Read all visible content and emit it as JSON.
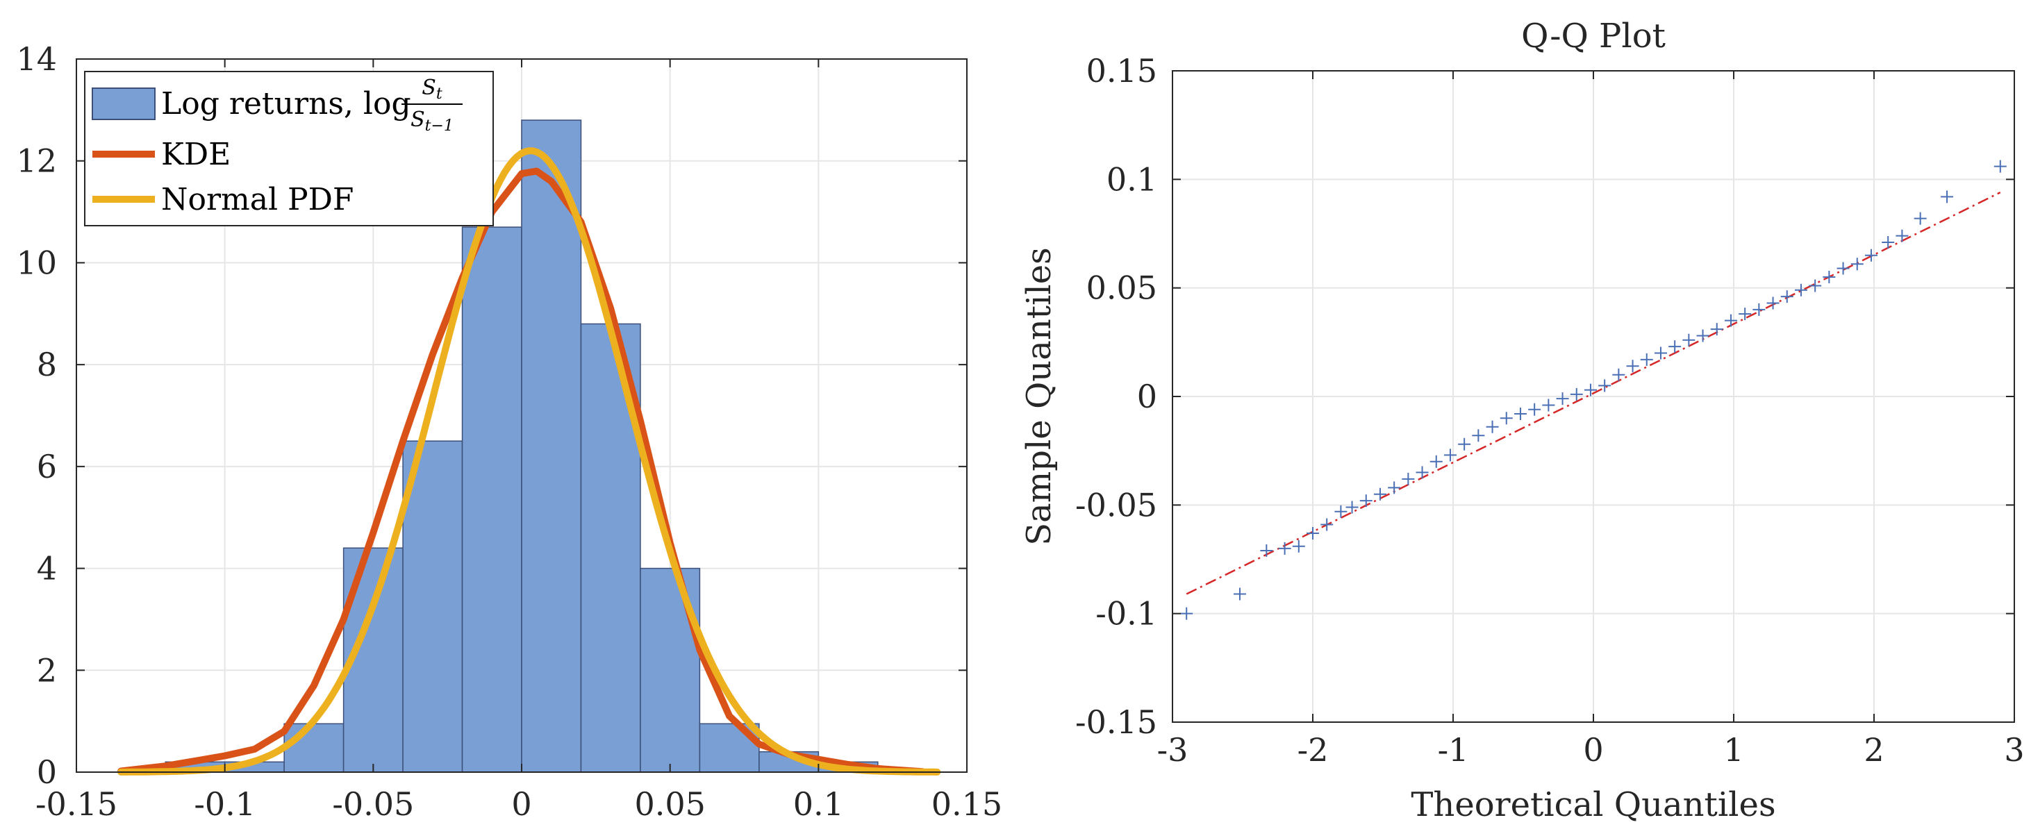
{
  "chart_data": [
    {
      "type": "bar",
      "title": "",
      "xlabel": "",
      "ylabel": "",
      "xlim": [
        -0.15,
        0.15
      ],
      "ylim": [
        0,
        14
      ],
      "xticks": [
        -0.15,
        -0.1,
        -0.05,
        0,
        0.05,
        0.1,
        0.15
      ],
      "xtick_labels": [
        "-0.15",
        "-0.1",
        "-0.05",
        "0",
        "0.05",
        "0.1",
        "0.15"
      ],
      "yticks": [
        0,
        2,
        4,
        6,
        8,
        10,
        12,
        14
      ],
      "ytick_labels": [
        "0",
        "2",
        "4",
        "6",
        "8",
        "10",
        "12",
        "14"
      ],
      "grid": true,
      "legend_position": "top-left",
      "histogram": {
        "name": "Log returns, log",
        "name_fraction": {
          "numerator": "S",
          "numerator_sub": "t",
          "denominator": "S",
          "denominator_sub": "t−1"
        },
        "color": "#7a9fd5",
        "edge_color": "#3b4f78",
        "bin_edges": [
          -0.12,
          -0.1,
          -0.08,
          -0.06,
          -0.04,
          -0.02,
          0.0,
          0.02,
          0.04,
          0.06,
          0.08,
          0.1,
          0.12
        ],
        "values": [
          0.2,
          0.2,
          0.95,
          4.4,
          6.5,
          10.7,
          12.8,
          8.8,
          4.0,
          0.95,
          0.4,
          0.2
        ]
      },
      "series": [
        {
          "name": "KDE",
          "color": "#d95319",
          "x": [
            -0.135,
            -0.12,
            -0.11,
            -0.1,
            -0.09,
            -0.08,
            -0.07,
            -0.06,
            -0.05,
            -0.04,
            -0.03,
            -0.02,
            -0.01,
            0.0,
            0.005,
            0.01,
            0.02,
            0.03,
            0.04,
            0.05,
            0.06,
            0.07,
            0.08,
            0.09,
            0.1,
            0.11,
            0.12,
            0.135
          ],
          "y": [
            0.02,
            0.12,
            0.22,
            0.32,
            0.45,
            0.8,
            1.7,
            3.0,
            4.7,
            6.5,
            8.2,
            9.7,
            11.0,
            11.75,
            11.8,
            11.6,
            10.8,
            9.1,
            6.9,
            4.5,
            2.4,
            1.1,
            0.55,
            0.35,
            0.25,
            0.15,
            0.07,
            0.01
          ]
        },
        {
          "name": "Normal PDF",
          "color": "#edb120",
          "mean": 0.003,
          "sd": 0.0327,
          "x_range": [
            -0.135,
            0.14
          ]
        }
      ]
    },
    {
      "type": "scatter",
      "title": "Q-Q Plot",
      "xlabel": "Theoretical Quantiles",
      "ylabel": "Sample Quantiles",
      "xlim": [
        -3,
        3
      ],
      "ylim": [
        -0.15,
        0.15
      ],
      "xticks": [
        -3,
        -2,
        -1,
        0,
        1,
        2,
        3
      ],
      "xtick_labels": [
        "-3",
        "-2",
        "-1",
        "0",
        "1",
        "2",
        "3"
      ],
      "yticks": [
        -0.15,
        -0.1,
        -0.05,
        0,
        0.05,
        0.1,
        0.15
      ],
      "ytick_labels": [
        "-0.15",
        "-0.1",
        "-0.05",
        "0",
        "0.05",
        "0.1",
        "0.15"
      ],
      "grid": true,
      "marker_color": "#4a6fb5",
      "reference_line": {
        "color": "#d62728",
        "style": "dash-dot",
        "x": [
          -2.9,
          2.9
        ],
        "y": [
          -0.091,
          0.094
        ]
      },
      "points": {
        "x": [
          -2.9,
          -2.52,
          -2.33,
          -2.2,
          -2.1,
          -2.0,
          -1.9,
          -1.8,
          -1.72,
          -1.62,
          -1.52,
          -1.42,
          -1.32,
          -1.22,
          -1.12,
          -1.02,
          -0.92,
          -0.82,
          -0.72,
          -0.62,
          -0.52,
          -0.42,
          -0.32,
          -0.22,
          -0.12,
          -0.02,
          0.08,
          0.18,
          0.28,
          0.38,
          0.48,
          0.58,
          0.68,
          0.78,
          0.88,
          0.98,
          1.08,
          1.18,
          1.28,
          1.38,
          1.48,
          1.58,
          1.68,
          1.78,
          1.88,
          1.98,
          2.1,
          2.2,
          2.33,
          2.52,
          2.9
        ],
        "y": [
          -0.1,
          -0.091,
          -0.071,
          -0.07,
          -0.069,
          -0.063,
          -0.059,
          -0.053,
          -0.051,
          -0.048,
          -0.045,
          -0.042,
          -0.038,
          -0.035,
          -0.03,
          -0.027,
          -0.022,
          -0.018,
          -0.014,
          -0.01,
          -0.008,
          -0.006,
          -0.004,
          -0.001,
          0.001,
          0.003,
          0.005,
          0.01,
          0.014,
          0.017,
          0.02,
          0.023,
          0.026,
          0.028,
          0.031,
          0.035,
          0.038,
          0.04,
          0.043,
          0.046,
          0.049,
          0.051,
          0.055,
          0.059,
          0.061,
          0.065,
          0.071,
          0.074,
          0.082,
          0.092,
          0.106
        ]
      }
    }
  ]
}
